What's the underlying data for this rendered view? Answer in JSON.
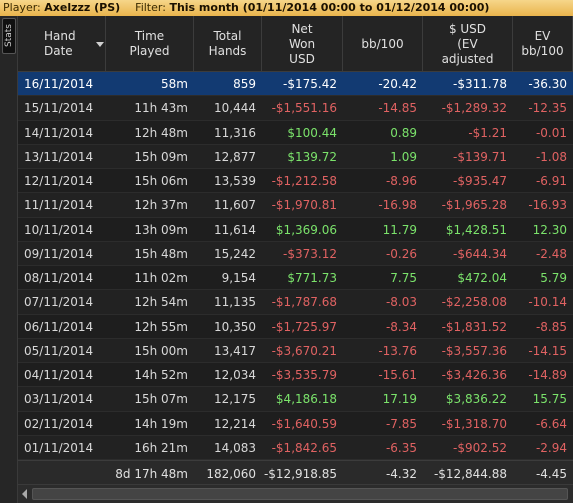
{
  "titlebar": {
    "player_label": "Player:",
    "player_value": "Axelzzz (PS)",
    "filter_label": "Filter:",
    "filter_value": "This month (01/11/2014 00:00 to 01/12/2014 00:00)"
  },
  "sidetab": {
    "label": "Stats"
  },
  "columns": [
    "Hand\nDate",
    "Time\nPlayed",
    "Total\nHands",
    "Net\nWon\nUSD",
    "bb/100",
    "$ USD\n(EV\nadjusted",
    "EV\nbb/100"
  ],
  "rows": [
    {
      "date": "16/11/2014",
      "time": "58m",
      "hands": "859",
      "net": "-$175.42",
      "bb": "-20.42",
      "ev_usd": "-$311.78",
      "ev_bb": "-36.30"
    },
    {
      "date": "15/11/2014",
      "time": "11h 43m",
      "hands": "10,444",
      "net": "-$1,551.16",
      "bb": "-14.85",
      "ev_usd": "-$1,289.32",
      "ev_bb": "-12.35"
    },
    {
      "date": "14/11/2014",
      "time": "12h 48m",
      "hands": "11,316",
      "net": "$100.44",
      "bb": "0.89",
      "ev_usd": "-$1.21",
      "ev_bb": "-0.01"
    },
    {
      "date": "13/11/2014",
      "time": "15h 09m",
      "hands": "12,877",
      "net": "$139.72",
      "bb": "1.09",
      "ev_usd": "-$139.71",
      "ev_bb": "-1.08"
    },
    {
      "date": "12/11/2014",
      "time": "15h 06m",
      "hands": "13,539",
      "net": "-$1,212.58",
      "bb": "-8.96",
      "ev_usd": "-$935.47",
      "ev_bb": "-6.91"
    },
    {
      "date": "11/11/2014",
      "time": "12h 37m",
      "hands": "11,607",
      "net": "-$1,970.81",
      "bb": "-16.98",
      "ev_usd": "-$1,965.28",
      "ev_bb": "-16.93"
    },
    {
      "date": "10/11/2014",
      "time": "13h 09m",
      "hands": "11,614",
      "net": "$1,369.06",
      "bb": "11.79",
      "ev_usd": "$1,428.51",
      "ev_bb": "12.30"
    },
    {
      "date": "09/11/2014",
      "time": "15h 48m",
      "hands": "15,242",
      "net": "-$373.12",
      "bb": "-0.26",
      "ev_usd": "-$644.34",
      "ev_bb": "-2.48"
    },
    {
      "date": "08/11/2014",
      "time": "11h 02m",
      "hands": "9,154",
      "net": "$771.73",
      "bb": "7.75",
      "ev_usd": "$472.04",
      "ev_bb": "5.79"
    },
    {
      "date": "07/11/2014",
      "time": "12h 54m",
      "hands": "11,135",
      "net": "-$1,787.68",
      "bb": "-8.03",
      "ev_usd": "-$2,258.08",
      "ev_bb": "-10.14"
    },
    {
      "date": "06/11/2014",
      "time": "12h 55m",
      "hands": "10,350",
      "net": "-$1,725.97",
      "bb": "-8.34",
      "ev_usd": "-$1,831.52",
      "ev_bb": "-8.85"
    },
    {
      "date": "05/11/2014",
      "time": "15h 00m",
      "hands": "13,417",
      "net": "-$3,670.21",
      "bb": "-13.76",
      "ev_usd": "-$3,557.36",
      "ev_bb": "-14.15"
    },
    {
      "date": "04/11/2014",
      "time": "14h 52m",
      "hands": "12,034",
      "net": "-$3,535.79",
      "bb": "-15.61",
      "ev_usd": "-$3,426.36",
      "ev_bb": "-14.89"
    },
    {
      "date": "03/11/2014",
      "time": "15h 07m",
      "hands": "12,175",
      "net": "$4,186.18",
      "bb": "17.19",
      "ev_usd": "$3,836.22",
      "ev_bb": "15.75"
    },
    {
      "date": "02/11/2014",
      "time": "14h 19m",
      "hands": "12,214",
      "net": "-$1,640.59",
      "bb": "-7.85",
      "ev_usd": "-$1,318.70",
      "ev_bb": "-6.64"
    },
    {
      "date": "01/11/2014",
      "time": "16h 21m",
      "hands": "14,083",
      "net": "-$1,842.65",
      "bb": "-6.35",
      "ev_usd": "-$902.52",
      "ev_bb": "-2.94"
    }
  ],
  "selected_row": 0,
  "totals": {
    "time": "8d 17h 48m",
    "hands": "182,060",
    "net": "-$12,918.85",
    "bb": "-4.32",
    "ev_usd": "-$12,844.88",
    "ev_bb": "-4.45"
  },
  "colors": {
    "positive": "#7be36b",
    "negative": "#e06262",
    "selection": "#123a72",
    "titlebar": "#e9b44c"
  }
}
